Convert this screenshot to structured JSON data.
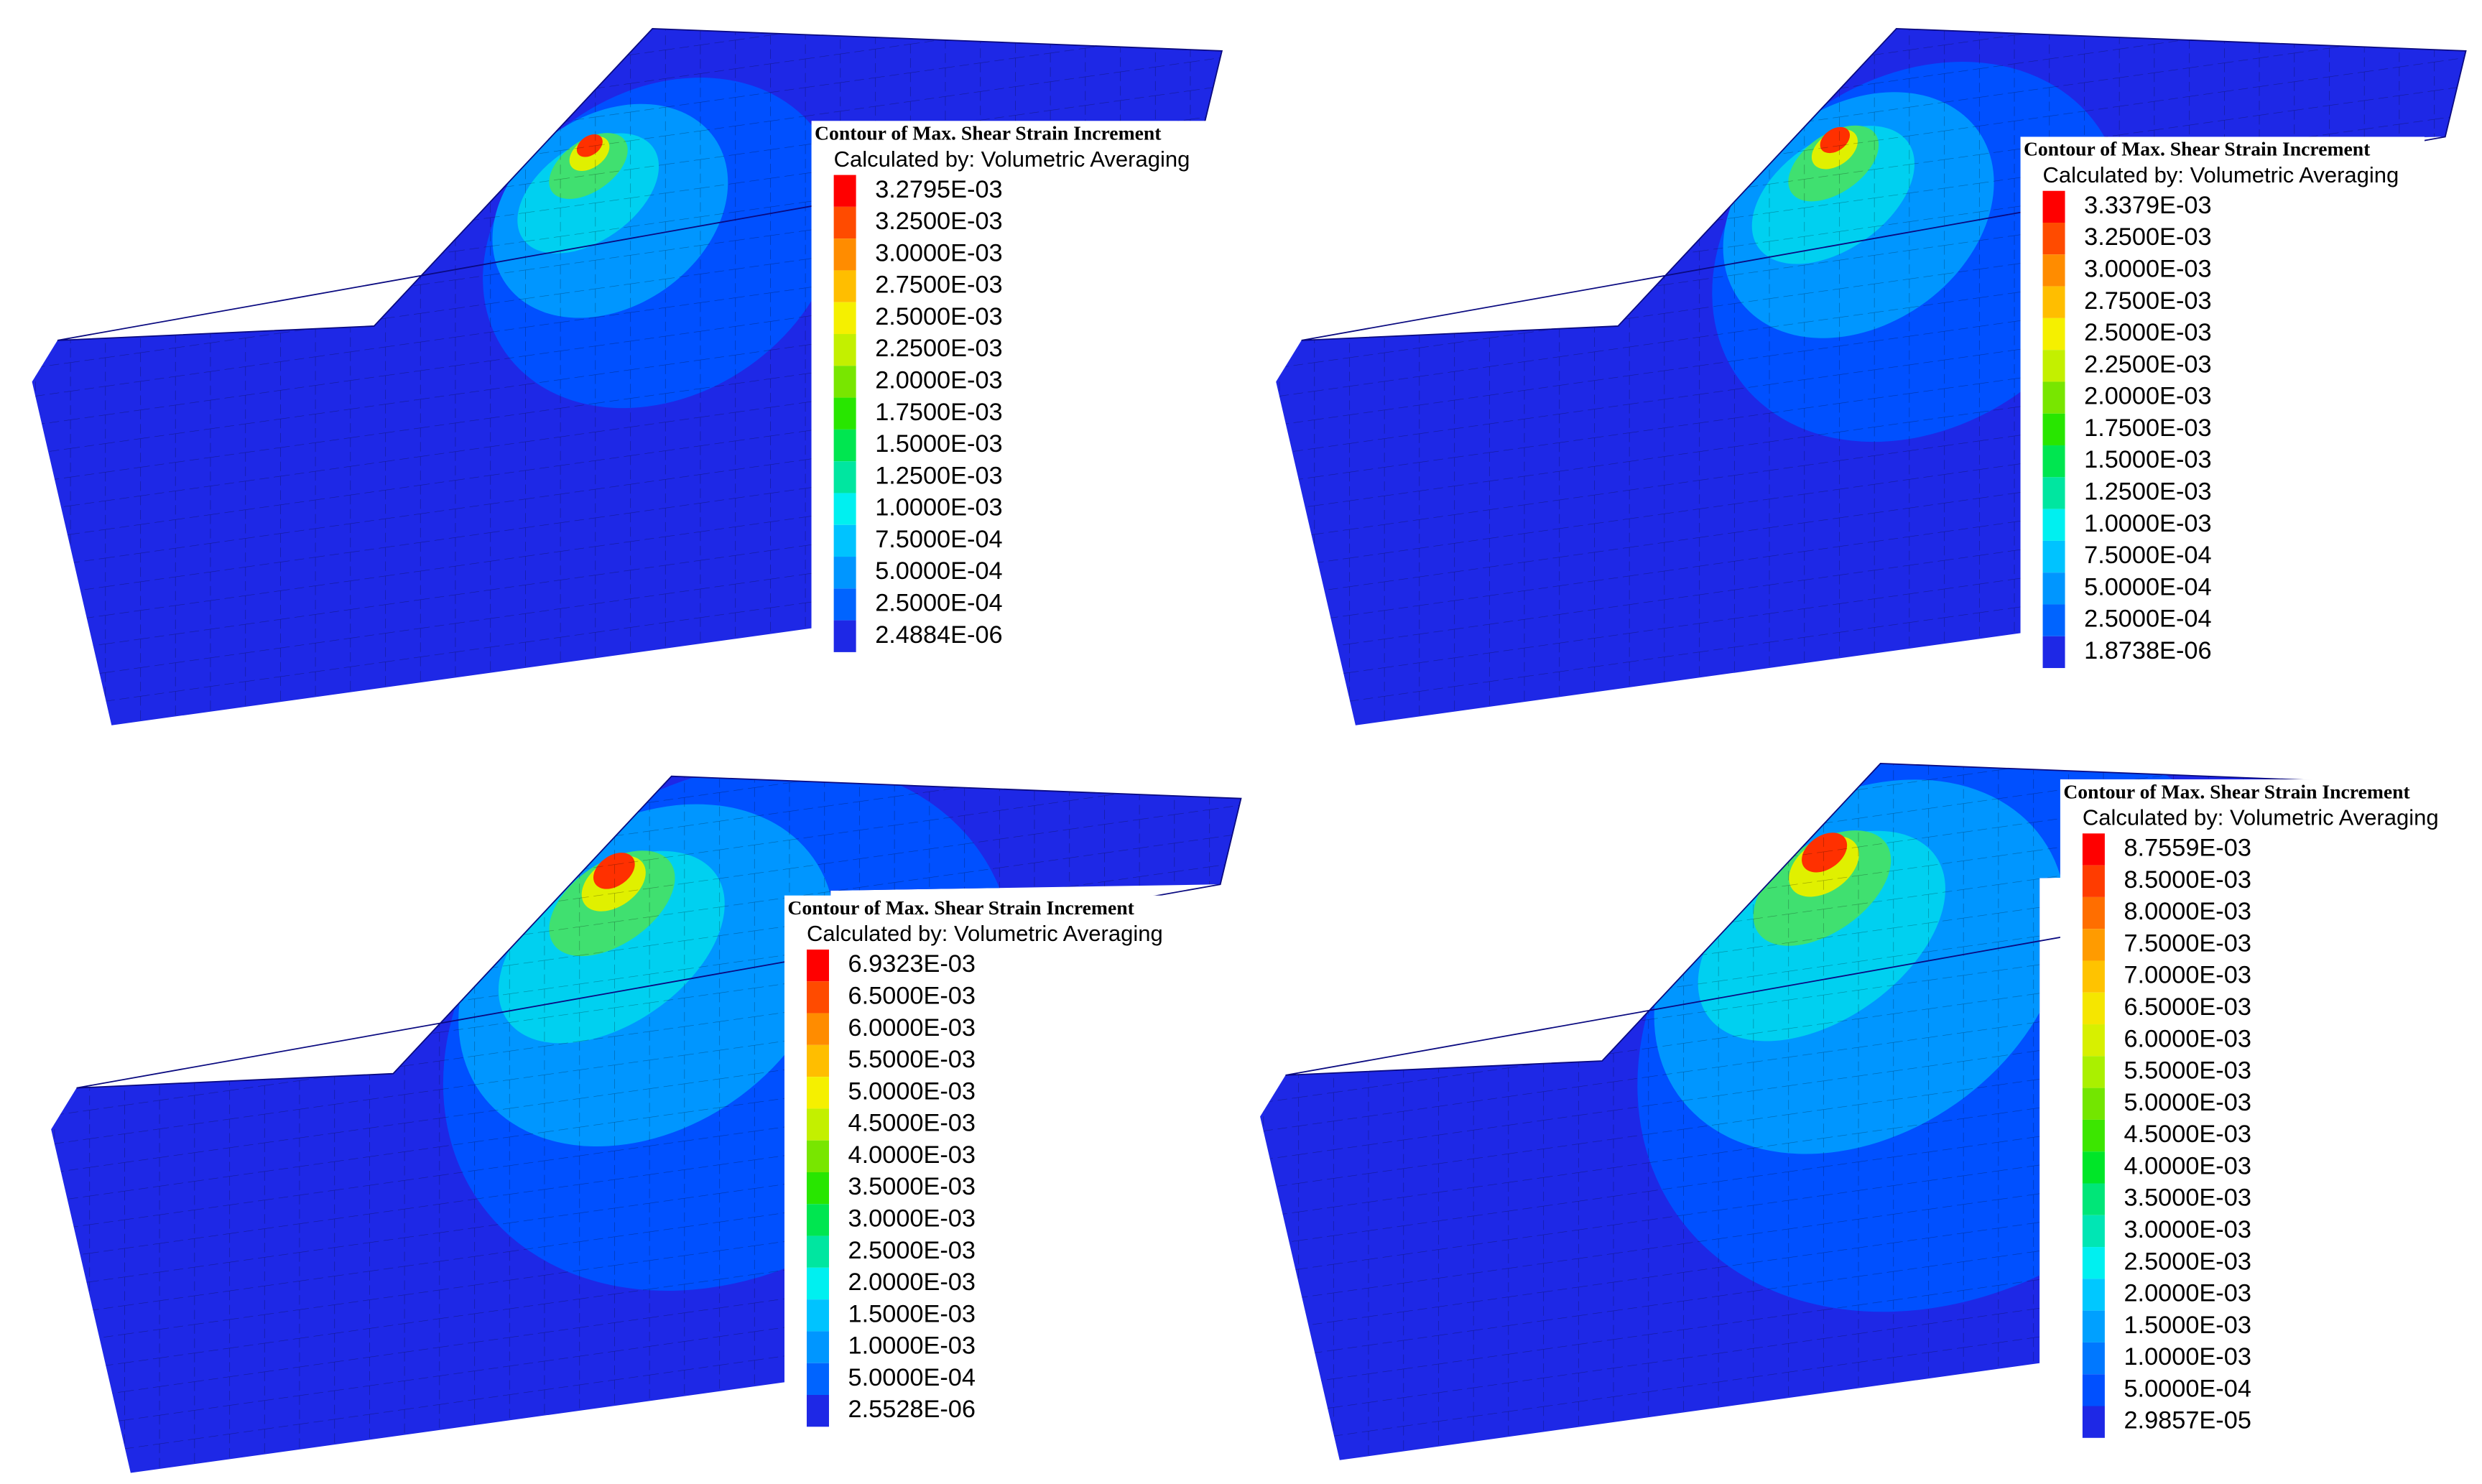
{
  "panels": [
    {
      "legend": {
        "title": "Contour of Max. Shear Strain Increment",
        "subtitle": "Calculated by: Volumetric Averaging",
        "labels": [
          "3.2795E-03",
          "3.2500E-03",
          "3.0000E-03",
          "2.7500E-03",
          "2.5000E-03",
          "2.2500E-03",
          "2.0000E-03",
          "1.7500E-03",
          "1.5000E-03",
          "1.2500E-03",
          "1.0000E-03",
          "7.5000E-04",
          "5.0000E-04",
          "2.5000E-04",
          "2.4884E-06"
        ],
        "colors": [
          "#ff0000",
          "#ff4b00",
          "#ff8c00",
          "#ffbe00",
          "#f5f000",
          "#c3f000",
          "#78e600",
          "#28e600",
          "#00e650",
          "#00e6a0",
          "#00f0f0",
          "#00c3ff",
          "#0096ff",
          "#0064ff",
          "#1e28e6"
        ]
      }
    },
    {
      "legend": {
        "title": "Contour of Max. Shear Strain Increment",
        "subtitle": "Calculated by: Volumetric Averaging",
        "labels": [
          "3.3379E-03",
          "3.2500E-03",
          "3.0000E-03",
          "2.7500E-03",
          "2.5000E-03",
          "2.2500E-03",
          "2.0000E-03",
          "1.7500E-03",
          "1.5000E-03",
          "1.2500E-03",
          "1.0000E-03",
          "7.5000E-04",
          "5.0000E-04",
          "2.5000E-04",
          "1.8738E-06"
        ],
        "colors": [
          "#ff0000",
          "#ff4b00",
          "#ff8c00",
          "#ffbe00",
          "#f5f000",
          "#c3f000",
          "#78e600",
          "#28e600",
          "#00e650",
          "#00e6a0",
          "#00f0f0",
          "#00c3ff",
          "#0096ff",
          "#0064ff",
          "#1e28e6"
        ]
      }
    },
    {
      "legend": {
        "title": "Contour of Max. Shear Strain Increment",
        "subtitle": "Calculated by: Volumetric Averaging",
        "labels": [
          "6.9323E-03",
          "6.5000E-03",
          "6.0000E-03",
          "5.5000E-03",
          "5.0000E-03",
          "4.5000E-03",
          "4.0000E-03",
          "3.5000E-03",
          "3.0000E-03",
          "2.5000E-03",
          "2.0000E-03",
          "1.5000E-03",
          "1.0000E-03",
          "5.0000E-04",
          "2.5528E-06"
        ],
        "colors": [
          "#ff0000",
          "#ff4b00",
          "#ff8c00",
          "#ffbe00",
          "#f5f000",
          "#c3f000",
          "#78e600",
          "#28e600",
          "#00e650",
          "#00e6a0",
          "#00f0f0",
          "#00c3ff",
          "#0096ff",
          "#0064ff",
          "#1e28e6"
        ]
      }
    },
    {
      "legend": {
        "title": "Contour of Max. Shear Strain Increment",
        "subtitle": "Calculated by: Volumetric Averaging",
        "labels": [
          "8.7559E-03",
          "8.5000E-03",
          "8.0000E-03",
          "7.5000E-03",
          "7.0000E-03",
          "6.5000E-03",
          "6.0000E-03",
          "5.5000E-03",
          "5.0000E-03",
          "4.5000E-03",
          "4.0000E-03",
          "3.5000E-03",
          "3.0000E-03",
          "2.5000E-03",
          "2.0000E-03",
          "1.5000E-03",
          "1.0000E-03",
          "5.0000E-04",
          "2.9857E-05"
        ],
        "colors": [
          "#ff0000",
          "#ff3c00",
          "#ff6e00",
          "#ff9b00",
          "#ffc300",
          "#f5e600",
          "#d7f000",
          "#aaf000",
          "#73e600",
          "#3ce600",
          "#00e628",
          "#00e678",
          "#00e6b4",
          "#00f0f0",
          "#00c8ff",
          "#00a0ff",
          "#0078ff",
          "#0050ff",
          "#1e28e6"
        ]
      }
    }
  ]
}
